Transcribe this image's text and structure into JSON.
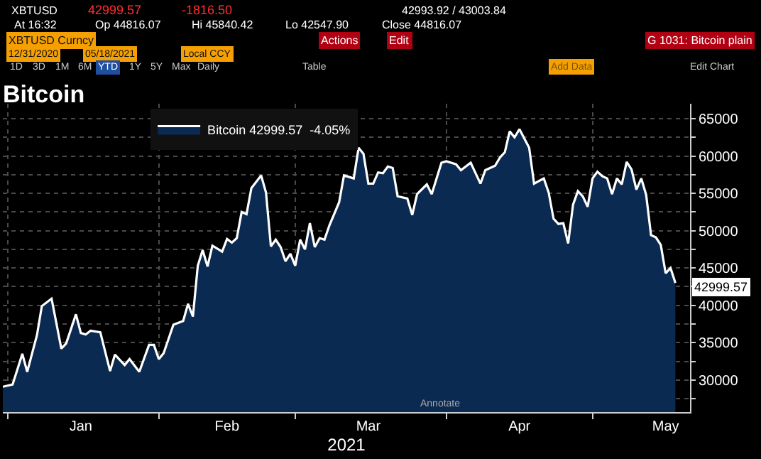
{
  "chart_data": {
    "type": "area",
    "title": "Bitcoin",
    "xlabel": "2021",
    "x": [
      "2020-12-31",
      "2021-01-02",
      "2021-01-04",
      "2021-01-05",
      "2021-01-07",
      "2021-01-08",
      "2021-01-10",
      "2021-01-12",
      "2021-01-13",
      "2021-01-15",
      "2021-01-16",
      "2021-01-17",
      "2021-01-18",
      "2021-01-20",
      "2021-01-22",
      "2021-01-23",
      "2021-01-25",
      "2021-01-26",
      "2021-01-28",
      "2021-01-30",
      "2021-01-31",
      "2021-02-01",
      "2021-02-02",
      "2021-02-04",
      "2021-02-06",
      "2021-02-07",
      "2021-02-08",
      "2021-02-09",
      "2021-02-10",
      "2021-02-11",
      "2021-02-12",
      "2021-02-14",
      "2021-02-15",
      "2021-02-16",
      "2021-02-17",
      "2021-02-18",
      "2021-02-19",
      "2021-02-20",
      "2021-02-22",
      "2021-02-23",
      "2021-02-24",
      "2021-02-25",
      "2021-02-26",
      "2021-02-27",
      "2021-02-28",
      "2021-03-01",
      "2021-03-02",
      "2021-03-03",
      "2021-03-04",
      "2021-03-05",
      "2021-03-06",
      "2021-03-07",
      "2021-03-08",
      "2021-03-10",
      "2021-03-11",
      "2021-03-13",
      "2021-03-14",
      "2021-03-15",
      "2021-03-16",
      "2021-03-17",
      "2021-03-18",
      "2021-03-19",
      "2021-03-20",
      "2021-03-21",
      "2021-03-22",
      "2021-03-24",
      "2021-03-25",
      "2021-03-26",
      "2021-03-28",
      "2021-03-29",
      "2021-03-31",
      "2021-04-01",
      "2021-04-03",
      "2021-04-04",
      "2021-04-06",
      "2021-04-08",
      "2021-04-09",
      "2021-04-11",
      "2021-04-12",
      "2021-04-13",
      "2021-04-14",
      "2021-04-15",
      "2021-04-16",
      "2021-04-18",
      "2021-04-19",
      "2021-04-21",
      "2021-04-22",
      "2021-04-23",
      "2021-04-24",
      "2021-04-25",
      "2021-04-26",
      "2021-04-27",
      "2021-04-28",
      "2021-04-29",
      "2021-04-30",
      "2021-05-01",
      "2021-05-02",
      "2021-05-03",
      "2021-05-04",
      "2021-05-05",
      "2021-05-06",
      "2021-05-07",
      "2021-05-08",
      "2021-05-09",
      "2021-05-10",
      "2021-05-11",
      "2021-05-12",
      "2021-05-13",
      "2021-05-14",
      "2021-05-15",
      "2021-05-16",
      "2021-05-17",
      "2021-05-18"
    ],
    "series": [
      {
        "name": "Bitcoin 42999.57  -4.05%",
        "color": "#ffffff",
        "values": [
          29100,
          29400,
          33500,
          31100,
          36000,
          39900,
          40900,
          34200,
          34900,
          38800,
          36300,
          36100,
          36600,
          36400,
          31200,
          33400,
          32000,
          32800,
          31100,
          34700,
          34700,
          32800,
          33600,
          37400,
          37900,
          40200,
          38500,
          45300,
          47400,
          45200,
          48000,
          47200,
          48900,
          48400,
          49000,
          52500,
          52200,
          55700,
          57400,
          55100,
          47900,
          48800,
          47800,
          45900,
          46900,
          45300,
          48800,
          47500,
          51000,
          47800,
          49000,
          48800,
          50700,
          53800,
          57400,
          57000,
          61100,
          60300,
          56300,
          56300,
          57800,
          57700,
          58600,
          58400,
          54600,
          54300,
          52100,
          54900,
          56200,
          54900,
          59100,
          59300,
          58900,
          58100,
          59100,
          56300,
          58100,
          58700,
          59800,
          60500,
          63300,
          62500,
          63600,
          61100,
          56300,
          57000,
          55100,
          51600,
          50900,
          51000,
          48300,
          53500,
          55300,
          54600,
          53200,
          57000,
          57900,
          57300,
          57000,
          54900,
          57000,
          56200,
          59200,
          58200,
          55500,
          57000,
          54800,
          49400,
          49100,
          48100,
          44300,
          45000,
          42999.57
        ]
      }
    ],
    "xlim": [
      "2020-12-31",
      "2021-05-21"
    ],
    "xticks": [
      {
        "value": "2021-01-16",
        "label": "Jan"
      },
      {
        "value": "2021-02-15",
        "label": "Feb"
      },
      {
        "value": "2021-03-16",
        "label": "Mar"
      },
      {
        "value": "2021-04-16",
        "label": "Apr"
      },
      {
        "value": "2021-05-16",
        "label": "May"
      }
    ],
    "ylim": [
      25700,
      67000
    ],
    "yticks": [
      {
        "value": 27500,
        "label": null
      },
      30000,
      {
        "value": 32500,
        "label": null
      },
      35000,
      {
        "value": 37500,
        "label": null
      },
      40000,
      {
        "value": 42500,
        "label": null
      },
      45000,
      {
        "value": 47500,
        "label": null
      },
      50000,
      {
        "value": 52500,
        "label": null
      },
      55000,
      {
        "value": 57500,
        "label": null
      },
      60000,
      {
        "value": 62500,
        "label": null
      },
      65000
    ],
    "grid": true,
    "legend": "top",
    "annotations": [
      {
        "text": "42999.57",
        "x": "2021-05-18",
        "y": 42999.57
      },
      "XBTUSD",
      "42999.57",
      "-1816.50",
      "42993.92 / 43003.84",
      "At 16:32",
      "Op 44816.07",
      "Hi 45840.42",
      "Lo 42547.90",
      "Close 44816.07",
      "XBTUSD Curncy",
      "Actions",
      "Edit",
      "G 1031: Bitcoin plain",
      "12/31/2020",
      "05/18/2021",
      "Local CCY",
      "1D",
      "3D",
      "1M",
      "6M",
      "YTD",
      "1Y",
      "5Y",
      "Max",
      "Daily",
      "Table",
      "Add Data",
      "Edit Chart",
      "Annotate"
    ]
  }
}
